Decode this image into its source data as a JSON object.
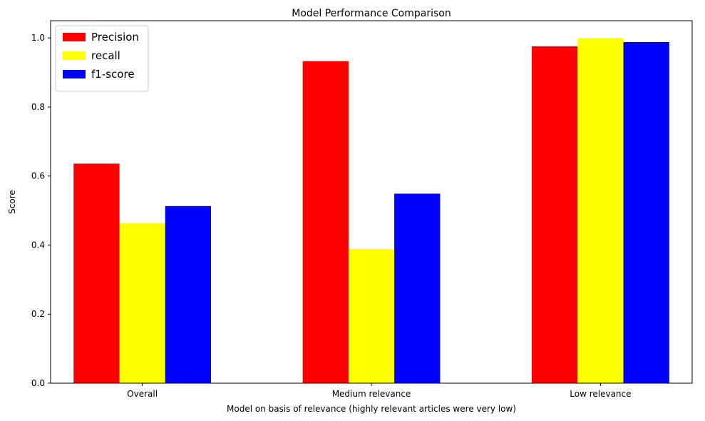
{
  "chart_data": {
    "type": "bar",
    "title": "Model Performance Comparison",
    "xlabel": "Model on basis of relevance (highly relevant articles were very low)",
    "ylabel": "Score",
    "categories": [
      "Overall",
      "Medium relevance",
      "Low relevance"
    ],
    "series": [
      {
        "name": "Precision",
        "color": "#ff0000",
        "values": [
          0.636,
          0.933,
          0.976
        ]
      },
      {
        "name": "recall",
        "color": "#ffff00",
        "values": [
          0.464,
          0.389,
          1.0
        ]
      },
      {
        "name": "f1-score",
        "color": "#0000ff",
        "values": [
          0.513,
          0.549,
          0.988
        ]
      }
    ],
    "ylim": [
      0,
      1.05
    ],
    "yticks": [
      "0.0",
      "0.2",
      "0.4",
      "0.6",
      "0.8",
      "1.0"
    ],
    "grid": false,
    "legend": "top-left"
  }
}
